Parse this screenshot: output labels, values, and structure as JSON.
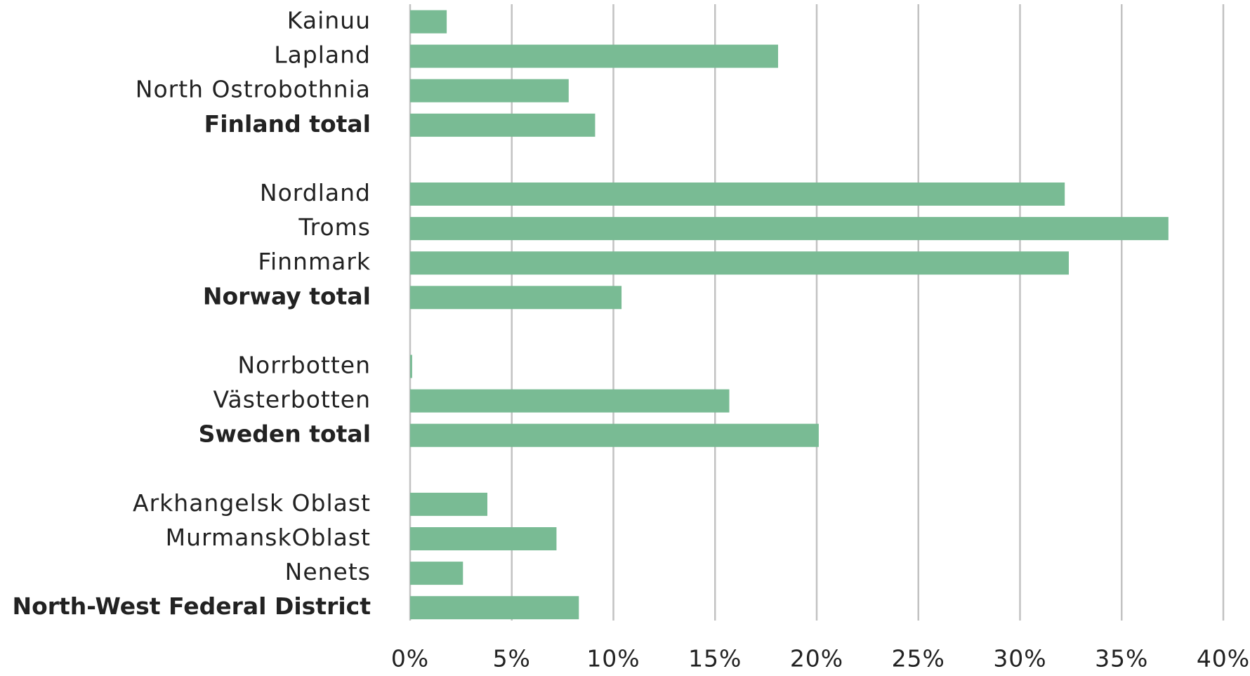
{
  "chart_data": {
    "type": "bar",
    "orientation": "horizontal",
    "categories": [
      "Kainuu",
      "Lapland",
      "North Ostrobothnia",
      "Finland total",
      null,
      "Nordland",
      "Troms",
      "Finnmark",
      "Norway total",
      null,
      "Norrbotten",
      "Västerbotten",
      "Sweden total",
      null,
      "Arkhangelsk Oblast",
      "MurmanskOblast",
      "Nenets",
      "North-West Federal District"
    ],
    "values": [
      1.8,
      18.1,
      7.8,
      9.1,
      null,
      32.2,
      37.3,
      32.4,
      10.4,
      null,
      0.1,
      15.7,
      20.1,
      null,
      3.8,
      7.2,
      2.6,
      8.3
    ],
    "color": "#79bb94",
    "xlim": [
      0,
      40
    ],
    "xticks": [
      {
        "value": 0,
        "label": "0%"
      },
      {
        "value": 5,
        "label": "5%"
      },
      {
        "value": 10,
        "label": "10%"
      },
      {
        "value": 15,
        "label": "15%"
      },
      {
        "value": 20,
        "label": "20%"
      },
      {
        "value": 25,
        "label": "25%"
      },
      {
        "value": 30,
        "label": "30%"
      },
      {
        "value": 35,
        "label": "35%"
      },
      {
        "value": 40,
        "label": "40%"
      }
    ],
    "grid": true
  }
}
